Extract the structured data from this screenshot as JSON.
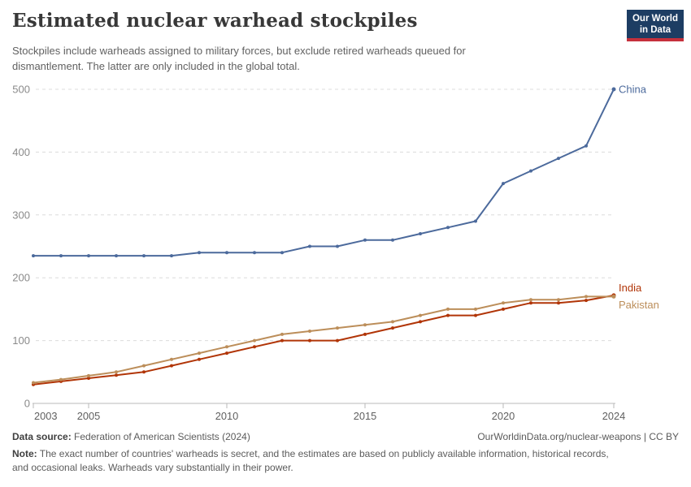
{
  "chart_data": {
    "type": "line",
    "title": "Estimated nuclear warhead stockpiles",
    "subtitle_lines": [
      "Stockpiles include warheads assigned to military forces, but exclude retired warheads queued for",
      "dismantlement. The latter are only included in the global total."
    ],
    "x": [
      2003,
      2004,
      2005,
      2006,
      2007,
      2008,
      2009,
      2010,
      2011,
      2012,
      2013,
      2014,
      2015,
      2016,
      2017,
      2018,
      2019,
      2020,
      2021,
      2022,
      2023,
      2024
    ],
    "series": [
      {
        "name": "China",
        "color": "#4C6A9C",
        "values": [
          235,
          235,
          235,
          235,
          235,
          235,
          240,
          240,
          240,
          240,
          250,
          250,
          260,
          260,
          270,
          280,
          290,
          350,
          370,
          390,
          410,
          500
        ]
      },
      {
        "name": "India",
        "color": "#B13507",
        "values": [
          30,
          35,
          40,
          45,
          50,
          60,
          70,
          80,
          90,
          100,
          100,
          100,
          110,
          120,
          130,
          140,
          140,
          150,
          160,
          160,
          164,
          172
        ]
      },
      {
        "name": "Pakistan",
        "color": "#BC8E5A",
        "values": [
          33,
          38,
          44,
          50,
          60,
          70,
          80,
          90,
          100,
          110,
          115,
          120,
          125,
          130,
          140,
          150,
          150,
          160,
          165,
          165,
          170,
          170
        ]
      }
    ],
    "xticks": [
      2003,
      2005,
      2010,
      2015,
      2020,
      2024
    ],
    "yticks": [
      0,
      100,
      200,
      300,
      400,
      500
    ],
    "ylim": [
      0,
      500
    ],
    "xlabel": "",
    "ylabel": "",
    "grid": true,
    "legend_position": "end-of-line labels"
  },
  "logo": {
    "line1": "Our World",
    "line2": "in Data"
  },
  "footer": {
    "source_label": "Data source:",
    "source_text": " Federation of American Scientists (2024)",
    "link_text": "OurWorldinData.org/nuclear-weapons | CC BY",
    "note_label": "Note:",
    "note_lines": [
      " The exact number of countries' warheads is secret, and the estimates are based on publicly available information, historical records,",
      "and occasional leaks. Warheads vary substantially in their power."
    ]
  }
}
